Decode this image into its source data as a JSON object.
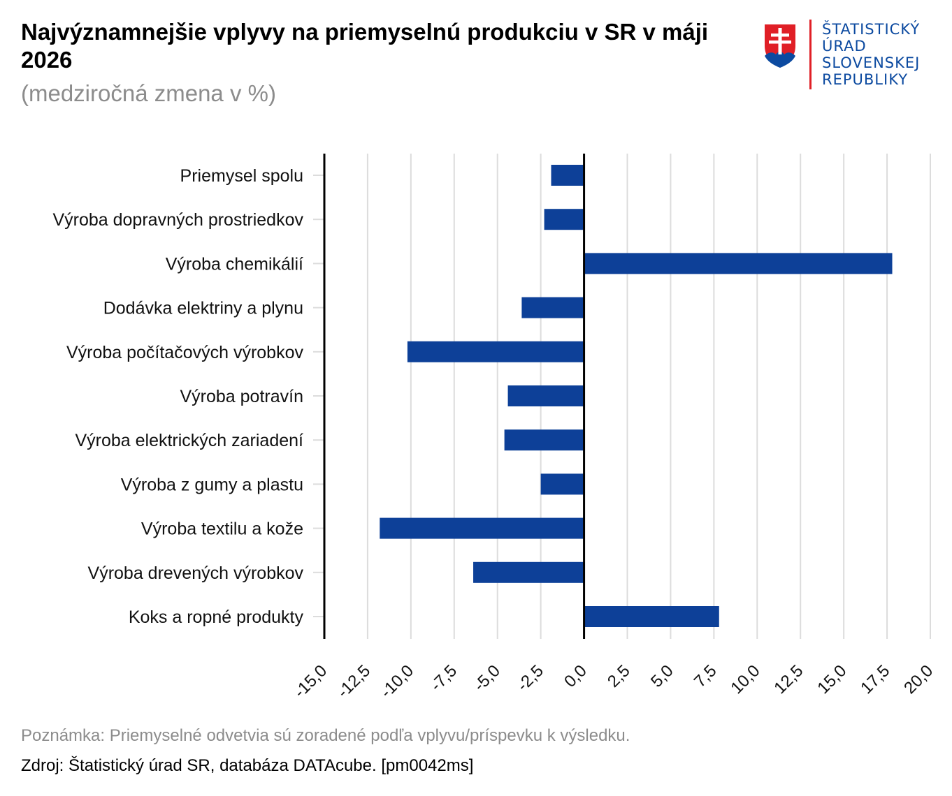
{
  "header": {
    "title": "Najvýznamnejšie vplyvy na priemyselnú produkciu v SR v máji 2026",
    "subtitle": "(medziročná zmena v %)"
  },
  "logo": {
    "lines": [
      "ŠTATISTICKÝ",
      "ÚRAD",
      "SLOVENSKEJ",
      "REPUBLIKY"
    ],
    "icon": "slovak-coat-of-arms-icon",
    "colors": {
      "text": "#0c4aa0",
      "accent": "#e01f26"
    }
  },
  "footer": {
    "note": "Poznámka: Priemyselné odvetvia sú zoradené podľa vplyvu/príspevku k výsledku.",
    "source": "Zdroj: Štatistický úrad SR, databáza DATAcube. [pm0042ms]"
  },
  "chart_data": {
    "type": "bar",
    "orientation": "horizontal",
    "categories": [
      "Priemysel spolu",
      "Výroba dopravných prostriedkov",
      "Výroba chemikálií",
      "Dodávka elektriny a plynu",
      "Výroba počítačových výrobkov",
      "Výroba potravín",
      "Výroba elektrických zariadení",
      "Výroba z gumy a plastu",
      "Výroba textilu a kože",
      "Výroba drevených výrobkov",
      "Koks a ropné produkty"
    ],
    "values": [
      -1.9,
      -2.3,
      17.8,
      -3.6,
      -10.2,
      -4.4,
      -4.6,
      -2.5,
      -11.8,
      -6.4,
      7.8
    ],
    "xlim": [
      -15,
      20
    ],
    "xticks": [
      -15,
      -12.5,
      -10,
      -7.5,
      -5,
      -2.5,
      0,
      2.5,
      5,
      7.5,
      10,
      12.5,
      15,
      17.5,
      20
    ],
    "tick_labels": [
      "-15,0",
      "-12,5",
      "-10,0",
      "-7,5",
      "-5,0",
      "-2,5",
      "0,0",
      "2,5",
      "5,0",
      "7,5",
      "10,0",
      "12,5",
      "15,0",
      "17,5",
      "20,0"
    ],
    "grid": "vertical",
    "legend": "none",
    "colors": {
      "bar": "#0d4098",
      "grid": "#dcdcdc",
      "axis": "#000000"
    }
  }
}
